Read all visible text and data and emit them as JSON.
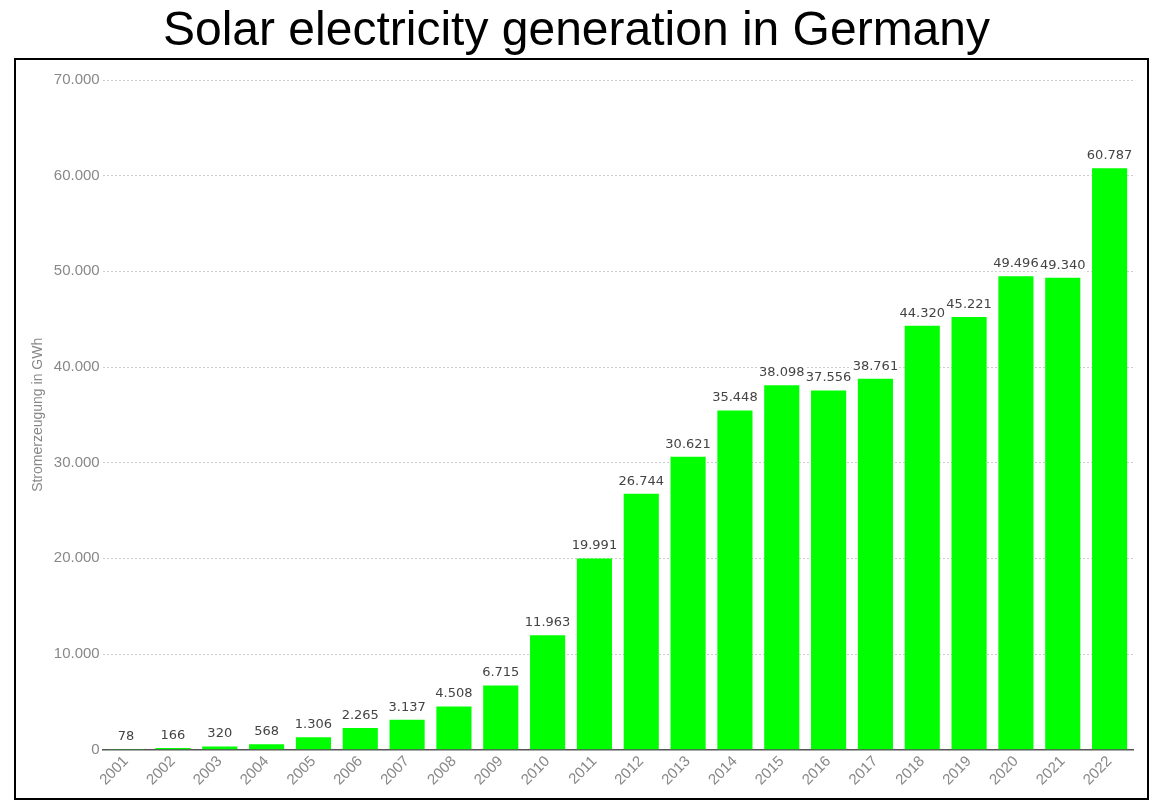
{
  "chart_data": {
    "type": "bar",
    "title": "Solar electricity generation in Germany",
    "ylabel": "Stromerzeugung in GWh",
    "categories": [
      "2001",
      "2002",
      "2003",
      "2004",
      "2005",
      "2006",
      "2007",
      "2008",
      "2009",
      "2010",
      "2011",
      "2012",
      "2013",
      "2014",
      "2015",
      "2016",
      "2017",
      "2018",
      "2019",
      "2020",
      "2021",
      "2022"
    ],
    "values": [
      78,
      166,
      320,
      568,
      1306,
      2265,
      3137,
      4508,
      6715,
      11963,
      19991,
      26744,
      30621,
      35448,
      38098,
      37556,
      38761,
      44320,
      45221,
      49496,
      49340,
      60787
    ],
    "value_labels": [
      "78",
      "166",
      "320",
      "568",
      "1.306",
      "2.265",
      "3.137",
      "4.508",
      "6.715",
      "11.963",
      "19.991",
      "26.744",
      "30.621",
      "35.448",
      "38.098",
      "37.556",
      "38.761",
      "44.320",
      "45.221",
      "49.496",
      "49.340",
      "60.787"
    ],
    "color": "#00ff00",
    "ylim": [
      0,
      70000
    ],
    "yticks": [
      {
        "value": 0,
        "label": "0"
      },
      {
        "value": 10000,
        "label": "10.000"
      },
      {
        "value": 20000,
        "label": "20.000"
      },
      {
        "value": 30000,
        "label": "30.000"
      },
      {
        "value": 40000,
        "label": "40.000"
      },
      {
        "value": 50000,
        "label": "50.000"
      },
      {
        "value": 60000,
        "label": "60.000"
      },
      {
        "value": 70000,
        "label": "70.000"
      }
    ],
    "grid": "y",
    "legend": false
  }
}
